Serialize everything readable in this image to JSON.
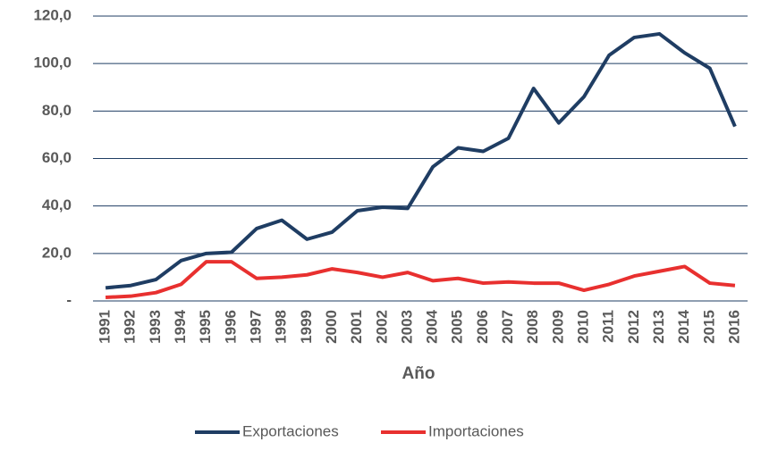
{
  "chart_data": {
    "type": "line",
    "categories": [
      "1991",
      "1992",
      "1993",
      "1994",
      "1995",
      "1996",
      "1997",
      "1998",
      "1999",
      "2000",
      "2001",
      "2002",
      "2003",
      "2004",
      "2005",
      "2006",
      "2007",
      "2008",
      "2009",
      "2010",
      "2011",
      "2012",
      "2013",
      "2014",
      "2015",
      "2016"
    ],
    "series": [
      {
        "name": "Exportaciones",
        "color": "#1f3d63",
        "values": [
          5.5,
          6.5,
          9,
          17,
          20,
          20.5,
          30.5,
          34,
          26,
          29,
          38,
          39.5,
          39,
          56.5,
          64.5,
          63,
          68.5,
          89.5,
          75,
          86,
          103.5,
          111,
          112.5,
          104.5,
          98,
          73.5
        ]
      },
      {
        "name": "Importaciones",
        "color": "#e8302f",
        "values": [
          1.5,
          2,
          3.5,
          7,
          16.5,
          16.5,
          9.5,
          10,
          11,
          13.5,
          12,
          10,
          12,
          8.5,
          9.5,
          7.5,
          8,
          7.5,
          7.5,
          4.5,
          7,
          10.5,
          12.5,
          14.5,
          7.5,
          6.5
        ]
      }
    ],
    "xlabel": "Año",
    "ylim": [
      0,
      120
    ],
    "yticks": [
      {
        "value": 0,
        "label": "-"
      },
      {
        "value": 20,
        "label": "20,0"
      },
      {
        "value": 40,
        "label": "40,0"
      },
      {
        "value": 60,
        "label": "60,0"
      },
      {
        "value": 80,
        "label": "80,0"
      },
      {
        "value": 100,
        "label": "100,0"
      },
      {
        "value": 120,
        "label": "120,0"
      }
    ],
    "grid": true,
    "legend": "bottom"
  }
}
